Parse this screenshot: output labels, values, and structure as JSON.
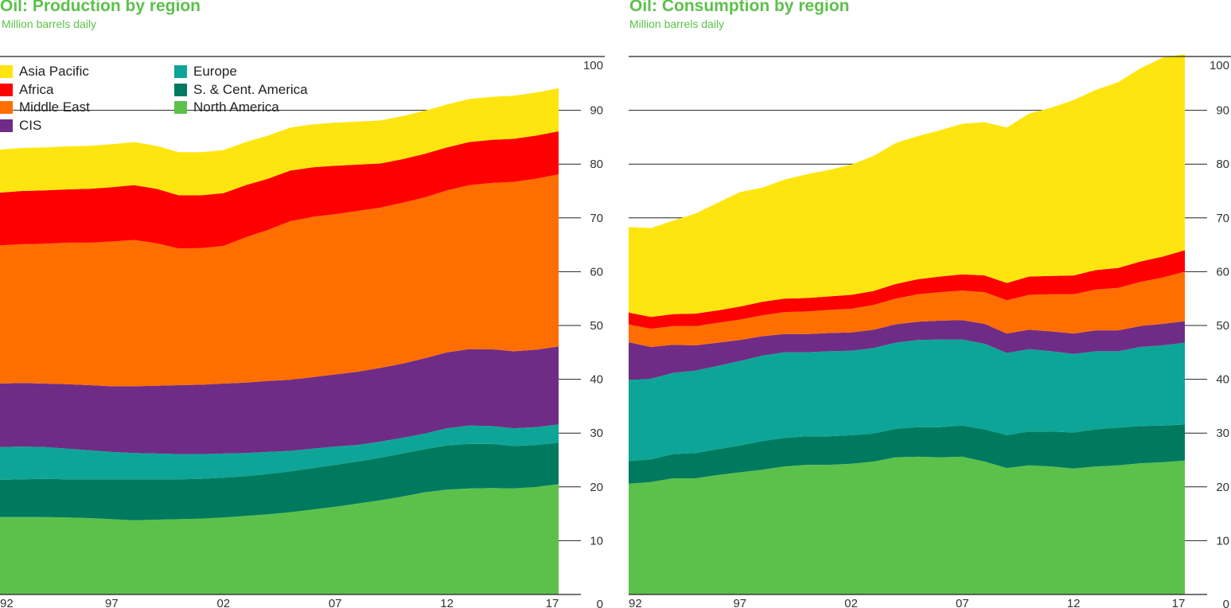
{
  "chart_data": [
    {
      "type": "area",
      "stacked": true,
      "title": "Oil: Production by region",
      "subtitle": "Million barrels daily",
      "x": [
        1992,
        1993,
        1994,
        1995,
        1996,
        1997,
        1998,
        1999,
        2000,
        2001,
        2002,
        2003,
        2004,
        2005,
        2006,
        2007,
        2008,
        2009,
        2010,
        2011,
        2012,
        2013,
        2014,
        2015,
        2016,
        2017
      ],
      "x_tick_labels": [
        "92",
        "97",
        "02",
        "07",
        "12",
        "17"
      ],
      "x_tick_values": [
        1992,
        1997,
        2002,
        2007,
        2012,
        2017
      ],
      "ylim": [
        0,
        100
      ],
      "y_ticks": [
        0,
        10,
        20,
        30,
        40,
        50,
        60,
        70,
        80,
        90,
        100
      ],
      "y_axis_side": "right",
      "legend_position": "top-left",
      "series": [
        {
          "name": "North America",
          "color": "#5cc14b",
          "values": [
            14.4,
            14.4,
            14.4,
            14.3,
            14.2,
            14.0,
            13.8,
            13.9,
            14.0,
            14.1,
            14.3,
            14.6,
            14.9,
            15.3,
            15.8,
            16.3,
            16.9,
            17.5,
            18.2,
            19.0,
            19.5,
            19.7,
            19.8,
            19.7,
            20.0,
            20.5
          ]
        },
        {
          "name": "S. & Cent. America",
          "color": "#007a5e",
          "values": [
            6.9,
            7.0,
            7.1,
            7.1,
            7.2,
            7.4,
            7.6,
            7.5,
            7.4,
            7.4,
            7.4,
            7.4,
            7.5,
            7.6,
            7.7,
            7.8,
            7.8,
            7.9,
            8.0,
            8.0,
            8.2,
            8.3,
            8.2,
            7.9,
            7.8,
            7.7
          ]
        },
        {
          "name": "Europe",
          "color": "#0da597",
          "values": [
            6.1,
            6.1,
            5.9,
            5.7,
            5.4,
            5.1,
            4.9,
            4.8,
            4.7,
            4.6,
            4.5,
            4.3,
            4.1,
            3.8,
            3.6,
            3.4,
            3.1,
            3.0,
            2.9,
            2.9,
            3.2,
            3.4,
            3.3,
            3.3,
            3.3,
            3.4
          ]
        },
        {
          "name": "CIS",
          "color": "#6f2c86",
          "values": [
            11.8,
            11.8,
            11.8,
            12.0,
            12.1,
            12.2,
            12.4,
            12.6,
            12.8,
            12.9,
            13.0,
            13.1,
            13.2,
            13.2,
            13.3,
            13.4,
            13.6,
            13.7,
            13.8,
            14.0,
            14.1,
            14.2,
            14.3,
            14.3,
            14.4,
            14.5
          ]
        },
        {
          "name": "Middle East",
          "color": "#ff6e00",
          "values": [
            25.7,
            25.8,
            26.0,
            26.3,
            26.5,
            26.9,
            27.2,
            26.5,
            25.4,
            25.4,
            25.6,
            27.0,
            28.1,
            29.5,
            29.8,
            29.8,
            29.9,
            29.8,
            29.9,
            29.9,
            30.1,
            30.5,
            30.9,
            31.5,
            31.8,
            32.0
          ]
        },
        {
          "name": "Africa",
          "color": "#ff0000",
          "values": [
            9.8,
            9.9,
            9.9,
            9.9,
            10.0,
            10.1,
            10.2,
            10.1,
            9.9,
            9.8,
            9.8,
            9.7,
            9.5,
            9.4,
            9.2,
            9.0,
            8.6,
            8.2,
            8.1,
            8.1,
            8.0,
            8.0,
            8.0,
            8.0,
            8.0,
            8.0
          ]
        },
        {
          "name": "Asia Pacific",
          "color": "#ffe50f",
          "values": [
            8.0,
            8.0,
            8.0,
            8.0,
            8.0,
            8.0,
            8.0,
            8.0,
            8.0,
            8.0,
            8.0,
            8.0,
            8.0,
            8.0,
            8.0,
            8.0,
            8.0,
            8.0,
            8.0,
            8.0,
            8.0,
            8.0,
            8.0,
            8.0,
            8.0,
            8.0
          ]
        }
      ]
    },
    {
      "type": "area",
      "stacked": true,
      "title": "Oil: Consumption by region",
      "subtitle": "Million barrels daily",
      "x": [
        1992,
        1993,
        1994,
        1995,
        1996,
        1997,
        1998,
        1999,
        2000,
        2001,
        2002,
        2003,
        2004,
        2005,
        2006,
        2007,
        2008,
        2009,
        2010,
        2011,
        2012,
        2013,
        2014,
        2015,
        2016,
        2017
      ],
      "x_tick_labels": [
        "92",
        "97",
        "02",
        "07",
        "12",
        "17"
      ],
      "x_tick_values": [
        1992,
        1997,
        2002,
        2007,
        2012,
        2017
      ],
      "ylim": [
        0,
        100
      ],
      "y_ticks": [
        0,
        10,
        20,
        30,
        40,
        50,
        60,
        70,
        80,
        90,
        100
      ],
      "y_axis_side": "right",
      "series": [
        {
          "name": "North America",
          "color": "#5cc14b",
          "values": [
            20.6,
            20.9,
            21.6,
            21.6,
            22.2,
            22.7,
            23.2,
            23.8,
            24.1,
            24.1,
            24.3,
            24.7,
            25.5,
            25.6,
            25.5,
            25.6,
            24.7,
            23.5,
            24.0,
            23.8,
            23.4,
            23.8,
            24.0,
            24.4,
            24.6,
            24.9
          ]
        },
        {
          "name": "S. & Cent. America",
          "color": "#007a5e",
          "values": [
            4.2,
            4.2,
            4.5,
            4.7,
            4.8,
            5.0,
            5.3,
            5.3,
            5.3,
            5.3,
            5.3,
            5.2,
            5.3,
            5.5,
            5.6,
            5.8,
            6.0,
            6.1,
            6.3,
            6.5,
            6.7,
            6.9,
            7.0,
            6.9,
            6.8,
            6.7
          ]
        },
        {
          "name": "Europe",
          "color": "#0da597",
          "values": [
            15.1,
            15.0,
            15.1,
            15.3,
            15.5,
            15.7,
            15.9,
            15.9,
            15.6,
            15.8,
            15.7,
            15.9,
            16.0,
            16.2,
            16.3,
            16.0,
            15.9,
            15.3,
            15.3,
            14.9,
            14.6,
            14.5,
            14.2,
            14.7,
            14.9,
            15.2
          ]
        },
        {
          "name": "CIS",
          "color": "#6f2c86",
          "values": [
            7.0,
            5.9,
            5.2,
            4.7,
            4.3,
            3.9,
            3.6,
            3.4,
            3.4,
            3.4,
            3.4,
            3.4,
            3.4,
            3.4,
            3.5,
            3.6,
            3.7,
            3.6,
            3.6,
            3.7,
            3.8,
            3.9,
            3.9,
            3.9,
            4.0,
            4.0
          ]
        },
        {
          "name": "Middle East",
          "color": "#ff6e00",
          "values": [
            3.3,
            3.4,
            3.5,
            3.6,
            3.7,
            3.8,
            3.9,
            4.1,
            4.2,
            4.3,
            4.4,
            4.6,
            4.8,
            5.1,
            5.3,
            5.5,
            5.9,
            6.2,
            6.5,
            6.9,
            7.3,
            7.6,
            7.9,
            8.2,
            8.6,
            9.2
          ]
        },
        {
          "name": "Africa",
          "color": "#ff0000",
          "values": [
            2.2,
            2.2,
            2.2,
            2.3,
            2.3,
            2.4,
            2.5,
            2.5,
            2.5,
            2.5,
            2.6,
            2.6,
            2.7,
            2.8,
            2.9,
            3.0,
            3.1,
            3.2,
            3.4,
            3.4,
            3.5,
            3.6,
            3.7,
            3.8,
            3.9,
            4.0
          ]
        },
        {
          "name": "Asia Pacific",
          "color": "#ffe50f",
          "values": [
            15.9,
            16.5,
            17.4,
            18.6,
            20.0,
            21.3,
            21.2,
            22.1,
            23.0,
            23.5,
            24.2,
            25.1,
            26.2,
            26.6,
            27.2,
            28.0,
            28.5,
            28.9,
            30.3,
            31.3,
            32.6,
            33.5,
            34.5,
            35.9,
            37.0,
            36.4
          ]
        }
      ]
    }
  ]
}
